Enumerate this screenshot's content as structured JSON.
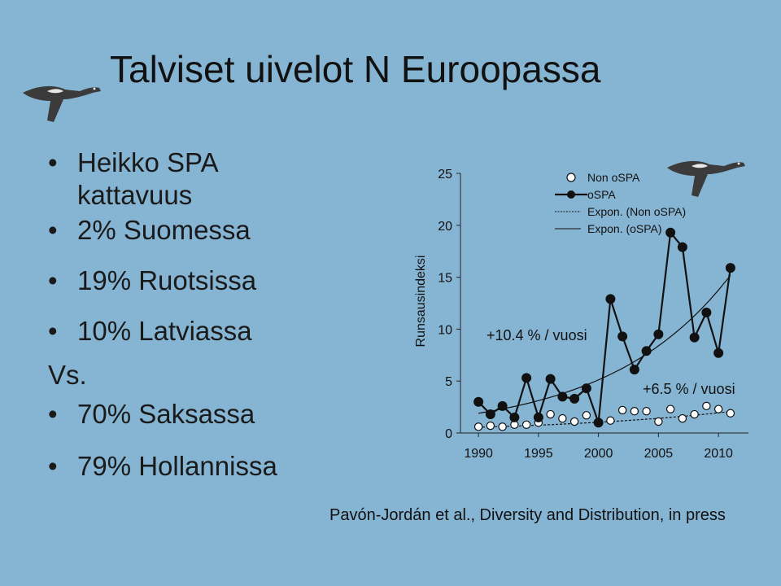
{
  "slide": {
    "title": "Talviset uivelot N Euroopassa",
    "bullets": {
      "coverage_line1": "Heikko SPA",
      "coverage_line2": "kattavuus",
      "finland": "2% Suomessa",
      "sweden": "19% Ruotsissa",
      "latvia": "10% Latviassa",
      "vs": "Vs.",
      "germany": "70% Saksassa",
      "netherlands": "79% Hollannissa"
    },
    "citation": "Pavón-Jordán et al., Diversity and Distribution, in press",
    "icons": [
      "smew-duck-icon",
      "smew-duck-icon"
    ]
  },
  "chart_data": {
    "type": "line",
    "ylabel": "Runsausindeksi",
    "xlabel": "",
    "xlim": [
      1988.5,
      2012.5
    ],
    "ylim": [
      0,
      25
    ],
    "x_ticks": [
      "1990",
      "1995",
      "2000",
      "2005",
      "2010"
    ],
    "y_ticks": [
      "0",
      "5",
      "10",
      "15",
      "20",
      "25"
    ],
    "x": [
      1990,
      1991,
      1992,
      1993,
      1994,
      1995,
      1996,
      1997,
      1998,
      1999,
      2000,
      2001,
      2002,
      2003,
      2004,
      2005,
      2006,
      2007,
      2008,
      2009,
      2010,
      2011
    ],
    "series": [
      {
        "name": "Non oSPA",
        "marker": "open-circle",
        "values": [
          0.6,
          0.7,
          0.6,
          0.8,
          0.8,
          1.0,
          1.8,
          1.4,
          1.1,
          1.7,
          1.0,
          1.2,
          2.2,
          2.1,
          2.1,
          1.1,
          2.3,
          1.4,
          1.8,
          2.6,
          2.3,
          1.9
        ]
      },
      {
        "name": "oSPA",
        "marker": "filled-circle",
        "values": [
          3.0,
          1.8,
          2.6,
          1.5,
          5.3,
          1.5,
          5.2,
          3.5,
          3.3,
          4.3,
          1.0,
          12.9,
          9.3,
          6.1,
          7.9,
          9.5,
          19.3,
          17.9,
          9.2,
          11.6,
          7.7,
          15.9
        ]
      }
    ],
    "trends": [
      {
        "name": "Expon. (Non oSPA)",
        "style": "dashed",
        "start": 0.55,
        "rate": 0.063
      },
      {
        "name": "Expon. (oSPA)",
        "style": "solid",
        "start": 1.9,
        "rate": 0.099
      }
    ],
    "annotations": {
      "ospa_growth": "+10.4 % / vuosi",
      "non_ospa_growth": "+6.5 % / vuosi"
    },
    "legend": "top-right",
    "grid": false
  }
}
